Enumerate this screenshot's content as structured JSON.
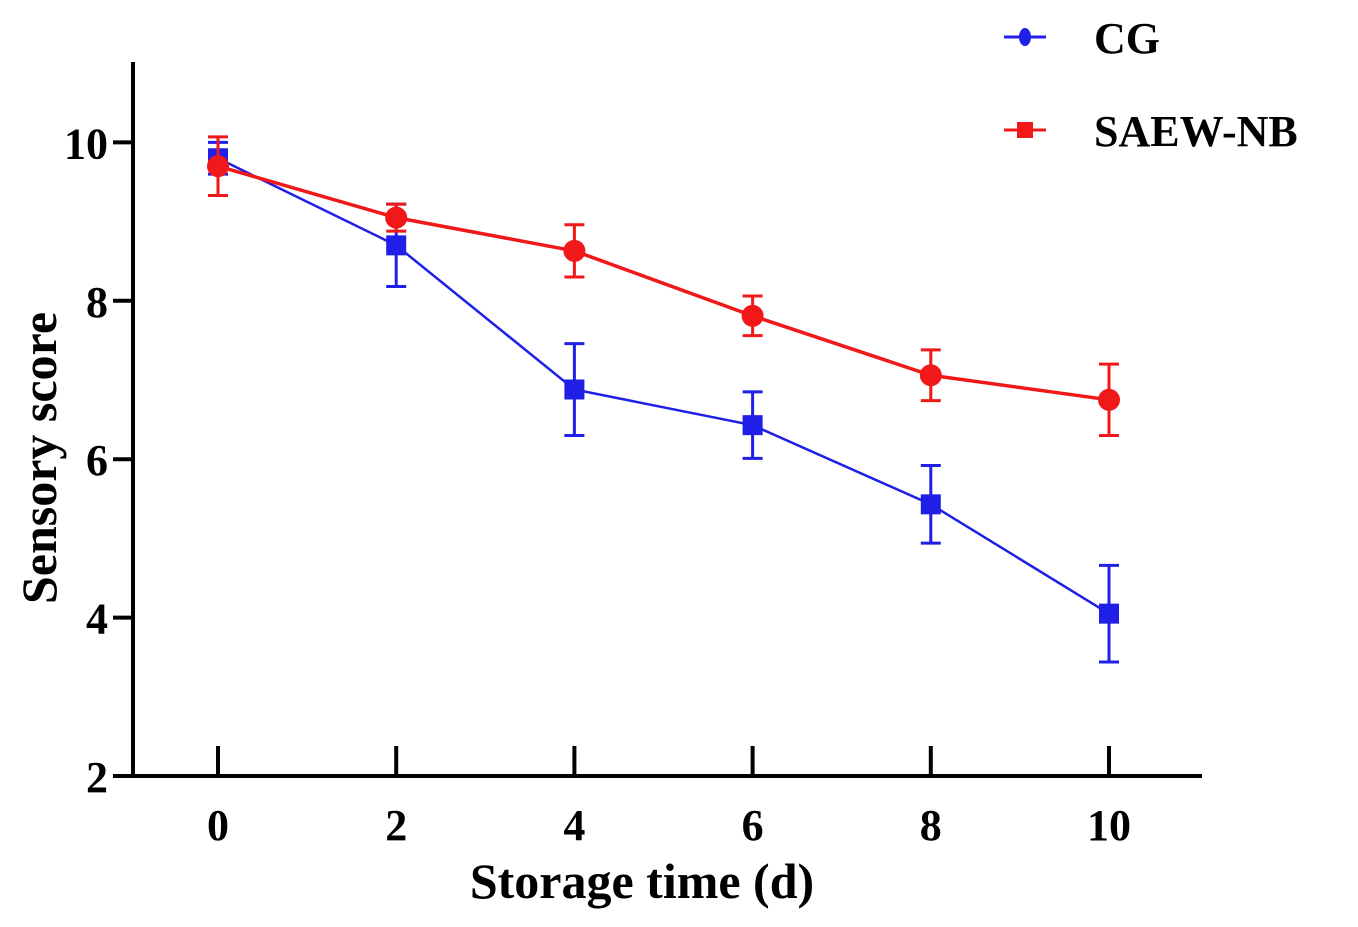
{
  "chart_data": {
    "type": "line",
    "title": "",
    "xlabel": "Storage time (d)",
    "ylabel": "Sensory score",
    "x": [
      0,
      2,
      4,
      6,
      8,
      10
    ],
    "x_tick_labels": [
      "0",
      "2",
      "4",
      "6",
      "8",
      "10"
    ],
    "y_tick_labels": [
      "2",
      "4",
      "6",
      "8",
      "10"
    ],
    "y_ticks": [
      2,
      4,
      6,
      8,
      10
    ],
    "xlim": [
      -1,
      11
    ],
    "ylim": [
      2,
      11
    ],
    "grid": false,
    "legend_position": "top-right",
    "series": [
      {
        "name": "CG",
        "color": "#1f1fe8",
        "marker": "square",
        "legend_marker": "circle",
        "values": [
          9.8,
          8.7,
          6.88,
          6.43,
          5.43,
          4.05
        ],
        "errors": [
          0.2,
          0.52,
          0.58,
          0.42,
          0.49,
          0.61
        ]
      },
      {
        "name": "SAEW-NB",
        "color": "#f01818",
        "marker": "circle",
        "legend_marker": "square",
        "values": [
          9.7,
          9.05,
          8.63,
          7.81,
          7.06,
          6.75
        ],
        "errors": [
          0.37,
          0.17,
          0.33,
          0.25,
          0.32,
          0.45
        ]
      }
    ]
  }
}
